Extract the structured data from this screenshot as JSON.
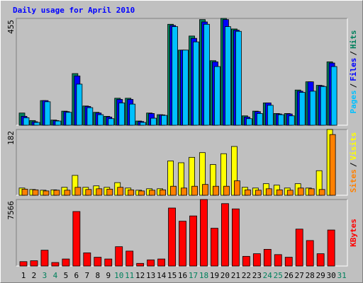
{
  "chart_data": [
    {
      "type": "bar",
      "title": "Daily usage for April 2010",
      "ylim": [
        0,
        455
      ],
      "yticks": [
        455
      ],
      "legend_separator": "/",
      "series": [
        {
          "name": "Pages",
          "color": "#00c0ff",
          "values": [
            32,
            12,
            100,
            18,
            55,
            175,
            75,
            45,
            28,
            95,
            90,
            12,
            30,
            42,
            420,
            320,
            355,
            430,
            250,
            420,
            400,
            28,
            50,
            85,
            45,
            40,
            140,
            145,
            165,
            250,
            null
          ]
        },
        {
          "name": "Files",
          "color": "#0000ff",
          "values": [
            38,
            15,
            105,
            20,
            58,
            210,
            80,
            52,
            35,
            110,
            110,
            16,
            50,
            44,
            425,
            320,
            370,
            440,
            270,
            450,
            405,
            35,
            58,
            95,
            48,
            48,
            145,
            185,
            168,
            265,
            null
          ]
        },
        {
          "name": "Hits",
          "color": "#00805c",
          "values": [
            52,
            20,
            105,
            22,
            60,
            220,
            82,
            55,
            38,
            115,
            115,
            18,
            52,
            45,
            430,
            320,
            380,
            450,
            275,
            455,
            410,
            40,
            60,
            95,
            50,
            50,
            150,
            185,
            170,
            270,
            null
          ]
        }
      ]
    },
    {
      "type": "bar",
      "ylim": [
        0,
        182
      ],
      "yticks": [
        182
      ],
      "legend_separator": "/",
      "series": [
        {
          "name": "Sites",
          "color": "#ff8000",
          "values": [
            17,
            15,
            12,
            14,
            14,
            22,
            16,
            18,
            17,
            22,
            15,
            12,
            14,
            15,
            25,
            20,
            25,
            30,
            25,
            25,
            40,
            15,
            14,
            18,
            15,
            14,
            20,
            18,
            16,
            168,
            null
          ]
        },
        {
          "name": "Visits",
          "color": "#ffff00",
          "values": [
            20,
            16,
            14,
            15,
            22,
            55,
            22,
            26,
            22,
            35,
            20,
            14,
            18,
            18,
            95,
            90,
            105,
            118,
            85,
            115,
            135,
            22,
            20,
            32,
            28,
            20,
            32,
            20,
            68,
            182,
            null
          ]
        }
      ]
    },
    {
      "type": "bar",
      "ylim": [
        0,
        7566
      ],
      "yticks": [
        7566
      ],
      "categories": [
        "1",
        "2",
        "3",
        "4",
        "5",
        "6",
        "7",
        "8",
        "9",
        "10",
        "11",
        "12",
        "13",
        "14",
        "15",
        "16",
        "17",
        "18",
        "19",
        "20",
        "21",
        "22",
        "23",
        "24",
        "25",
        "26",
        "27",
        "28",
        "29",
        "30",
        "31"
      ],
      "category_colors": [
        "#000000",
        "#000000",
        "#00805c",
        "#00805c",
        "#000000",
        "#000000",
        "#000000",
        "#000000",
        "#000000",
        "#00805c",
        "#00805c",
        "#000000",
        "#000000",
        "#000000",
        "#000000",
        "#000000",
        "#00805c",
        "#00805c",
        "#000000",
        "#000000",
        "#000000",
        "#000000",
        "#000000",
        "#00805c",
        "#00805c",
        "#000000",
        "#000000",
        "#000000",
        "#000000",
        "#000000",
        "#00805c"
      ],
      "series": [
        {
          "name": "KBytes",
          "color": "#ff0000",
          "values": [
            500,
            600,
            1800,
            400,
            800,
            6200,
            1500,
            1000,
            800,
            2200,
            1700,
            300,
            700,
            800,
            6600,
            5100,
            5700,
            7566,
            4300,
            7100,
            6500,
            1100,
            1400,
            1900,
            1300,
            1000,
            4200,
            2900,
            1400,
            4100,
            null
          ]
        }
      ]
    }
  ]
}
